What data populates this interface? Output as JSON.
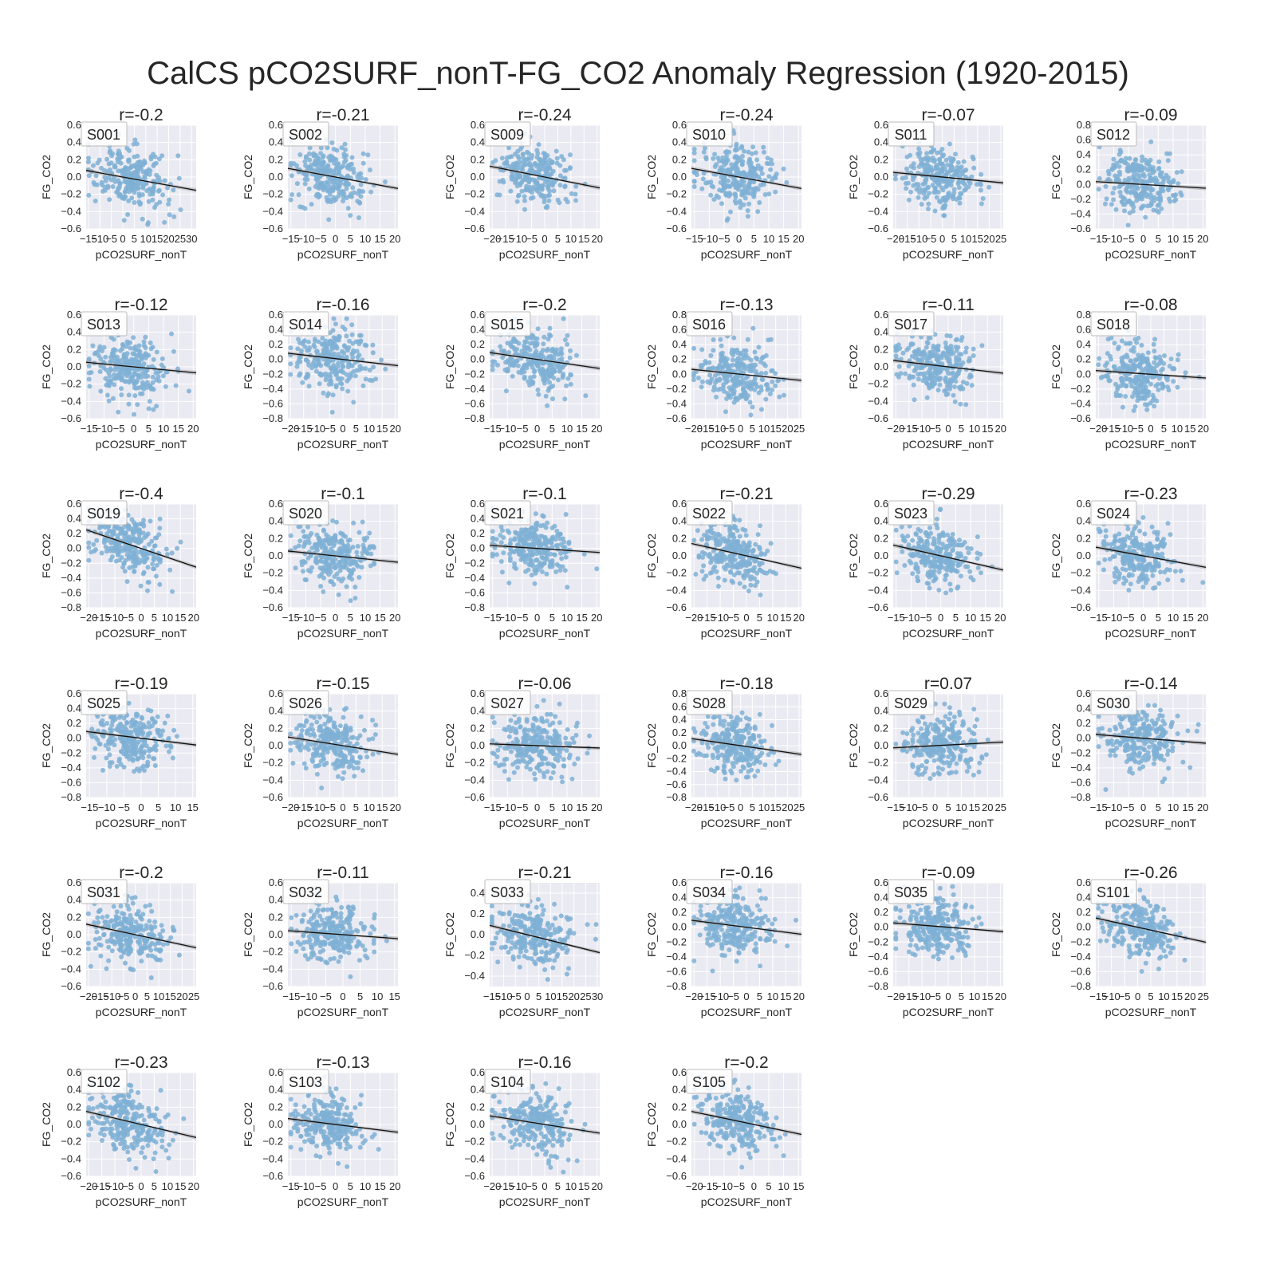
{
  "title": "CalCS pCO2SURF_nonT-FG_CO2 Anomaly Regression (1920-2015)",
  "colors": {
    "points": "#7fb0d5",
    "line": "#111111",
    "band": "#9a9a9a",
    "panel_bg": "#eaeaf2",
    "grid": "#ffffff"
  },
  "chart_data": [
    {
      "type": "scatter",
      "id": "S001",
      "r_label": "r=-0.2",
      "xlabel": "pCO2SURF_nonT",
      "ylabel": "FG_CO2",
      "xlim": [
        -16,
        32
      ],
      "ylim": [
        -0.6,
        0.6
      ],
      "xticks": [
        -15,
        -10,
        -5,
        0,
        5,
        10,
        15,
        20,
        25,
        30
      ],
      "yticks": [
        -0.6,
        -0.4,
        -0.2,
        0.0,
        0.2,
        0.4,
        0.6
      ],
      "fit": {
        "slope": -0.0048,
        "intercept": 0.0
      }
    },
    {
      "type": "scatter",
      "id": "S002",
      "r_label": "r=-0.21",
      "xlabel": "pCO2SURF_nonT",
      "ylabel": "FG_CO2",
      "xlim": [
        -16,
        21
      ],
      "ylim": [
        -0.6,
        0.6
      ],
      "xticks": [
        -15,
        -10,
        -5,
        0,
        5,
        10,
        15,
        20
      ],
      "yticks": [
        -0.6,
        -0.4,
        -0.2,
        0.0,
        0.2,
        0.4,
        0.6
      ],
      "fit": {
        "slope": -0.0063,
        "intercept": 0.0
      }
    },
    {
      "type": "scatter",
      "id": "S009",
      "r_label": "r=-0.24",
      "xlabel": "pCO2SURF_nonT",
      "ylabel": "FG_CO2",
      "xlim": [
        -21,
        21
      ],
      "ylim": [
        -0.6,
        0.6
      ],
      "xticks": [
        -20,
        -15,
        -10,
        -5,
        0,
        5,
        10,
        15,
        20
      ],
      "yticks": [
        -0.6,
        -0.4,
        -0.2,
        0.0,
        0.2,
        0.4,
        0.6
      ],
      "fit": {
        "slope": -0.006,
        "intercept": 0.0
      }
    },
    {
      "type": "scatter",
      "id": "S010",
      "r_label": "r=-0.24",
      "xlabel": "pCO2SURF_nonT",
      "ylabel": "FG_CO2",
      "xlim": [
        -16,
        21
      ],
      "ylim": [
        -0.6,
        0.6
      ],
      "xticks": [
        -15,
        -10,
        -5,
        0,
        5,
        10,
        15,
        20
      ],
      "yticks": [
        -0.6,
        -0.4,
        -0.2,
        0.0,
        0.2,
        0.4,
        0.6
      ],
      "fit": {
        "slope": -0.0063,
        "intercept": 0.0
      }
    },
    {
      "type": "scatter",
      "id": "S011",
      "r_label": "r=-0.07",
      "xlabel": "pCO2SURF_nonT",
      "ylabel": "FG_CO2",
      "xlim": [
        -21,
        26
      ],
      "ylim": [
        -0.6,
        0.6
      ],
      "xticks": [
        -20,
        -15,
        -10,
        -5,
        0,
        5,
        10,
        15,
        20,
        25
      ],
      "yticks": [
        -0.6,
        -0.4,
        -0.2,
        0.0,
        0.2,
        0.4,
        0.6
      ],
      "fit": {
        "slope": -0.0026,
        "intercept": 0.0
      }
    },
    {
      "type": "scatter",
      "id": "S012",
      "r_label": "r=-0.09",
      "xlabel": "pCO2SURF_nonT",
      "ylabel": "FG_CO2",
      "xlim": [
        -16,
        21
      ],
      "ylim": [
        -0.6,
        0.8
      ],
      "xticks": [
        -15,
        -10,
        -5,
        0,
        5,
        10,
        15,
        20
      ],
      "yticks": [
        -0.6,
        -0.4,
        -0.2,
        0.0,
        0.2,
        0.4,
        0.6,
        0.8
      ],
      "fit": {
        "slope": -0.0024,
        "intercept": 0.0
      }
    },
    {
      "type": "scatter",
      "id": "S013",
      "r_label": "r=-0.12",
      "xlabel": "pCO2SURF_nonT",
      "ylabel": "FG_CO2",
      "xlim": [
        -16,
        21
      ],
      "ylim": [
        -0.6,
        0.6
      ],
      "xticks": [
        -15,
        -10,
        -5,
        0,
        5,
        10,
        15,
        20
      ],
      "yticks": [
        -0.6,
        -0.4,
        -0.2,
        0.0,
        0.2,
        0.4,
        0.6
      ],
      "fit": {
        "slope": -0.0033,
        "intercept": 0.0
      }
    },
    {
      "type": "scatter",
      "id": "S014",
      "r_label": "r=-0.16",
      "xlabel": "pCO2SURF_nonT",
      "ylabel": "FG_CO2",
      "xlim": [
        -21,
        21
      ],
      "ylim": [
        -0.8,
        0.6
      ],
      "xticks": [
        -20,
        -15,
        -10,
        -5,
        0,
        5,
        10,
        15,
        20
      ],
      "yticks": [
        -0.8,
        -0.6,
        -0.4,
        -0.2,
        0.0,
        0.2,
        0.4,
        0.6
      ],
      "fit": {
        "slope": -0.004,
        "intercept": 0.0
      }
    },
    {
      "type": "scatter",
      "id": "S015",
      "r_label": "r=-0.2",
      "xlabel": "pCO2SURF_nonT",
      "ylabel": "FG_CO2",
      "xlim": [
        -16,
        21
      ],
      "ylim": [
        -0.8,
        0.6
      ],
      "xticks": [
        -15,
        -10,
        -5,
        0,
        5,
        10,
        15,
        20
      ],
      "yticks": [
        -0.8,
        -0.6,
        -0.4,
        -0.2,
        0.0,
        0.2,
        0.4,
        0.6
      ],
      "fit": {
        "slope": -0.0058,
        "intercept": 0.0
      }
    },
    {
      "type": "scatter",
      "id": "S016",
      "r_label": "r=-0.13",
      "xlabel": "pCO2SURF_nonT",
      "ylabel": "FG_CO2",
      "xlim": [
        -21,
        26
      ],
      "ylim": [
        -0.6,
        0.8
      ],
      "xticks": [
        -20,
        -15,
        -10,
        -5,
        0,
        5,
        10,
        15,
        20,
        25
      ],
      "yticks": [
        -0.6,
        -0.4,
        -0.2,
        0.0,
        0.2,
        0.4,
        0.6,
        0.8
      ],
      "fit": {
        "slope": -0.0032,
        "intercept": 0.0
      }
    },
    {
      "type": "scatter",
      "id": "S017",
      "r_label": "r=-0.11",
      "xlabel": "pCO2SURF_nonT",
      "ylabel": "FG_CO2",
      "xlim": [
        -21,
        21
      ],
      "ylim": [
        -0.6,
        0.6
      ],
      "xticks": [
        -20,
        -15,
        -10,
        -5,
        0,
        5,
        10,
        15,
        20
      ],
      "yticks": [
        -0.6,
        -0.4,
        -0.2,
        0.0,
        0.2,
        0.4,
        0.6
      ],
      "fit": {
        "slope": -0.0035,
        "intercept": 0.0
      }
    },
    {
      "type": "scatter",
      "id": "S018",
      "r_label": "r=-0.08",
      "xlabel": "pCO2SURF_nonT",
      "ylabel": "FG_CO2",
      "xlim": [
        -21,
        21
      ],
      "ylim": [
        -0.6,
        0.8
      ],
      "xticks": [
        -20,
        -15,
        -10,
        -5,
        0,
        5,
        10,
        15,
        20
      ],
      "yticks": [
        -0.6,
        -0.4,
        -0.2,
        0.0,
        0.2,
        0.4,
        0.6,
        0.8
      ],
      "fit": {
        "slope": -0.0024,
        "intercept": 0.0
      }
    },
    {
      "type": "scatter",
      "id": "S019",
      "r_label": "r=-0.4",
      "xlabel": "pCO2SURF_nonT",
      "ylabel": "FG_CO2",
      "xlim": [
        -21,
        21
      ],
      "ylim": [
        -0.8,
        0.6
      ],
      "xticks": [
        -20,
        -15,
        -10,
        -5,
        0,
        5,
        10,
        15,
        20
      ],
      "yticks": [
        -0.8,
        -0.6,
        -0.4,
        -0.2,
        0.0,
        0.2,
        0.4,
        0.6
      ],
      "fit": {
        "slope": -0.012,
        "intercept": 0.0
      }
    },
    {
      "type": "scatter",
      "id": "S020",
      "r_label": "r=-0.1",
      "xlabel": "pCO2SURF_nonT",
      "ylabel": "FG_CO2",
      "xlim": [
        -16,
        21
      ],
      "ylim": [
        -0.6,
        0.6
      ],
      "xticks": [
        -15,
        -10,
        -5,
        0,
        5,
        10,
        15,
        20
      ],
      "yticks": [
        -0.6,
        -0.4,
        -0.2,
        0.0,
        0.2,
        0.4,
        0.6
      ],
      "fit": {
        "slope": -0.0035,
        "intercept": 0.0
      }
    },
    {
      "type": "scatter",
      "id": "S021",
      "r_label": "r=-0.1",
      "xlabel": "pCO2SURF_nonT",
      "ylabel": "FG_CO2",
      "xlim": [
        -16,
        21
      ],
      "ylim": [
        -0.8,
        0.6
      ],
      "xticks": [
        -15,
        -10,
        -5,
        0,
        5,
        10,
        15,
        20
      ],
      "yticks": [
        -0.8,
        -0.6,
        -0.4,
        -0.2,
        0.0,
        0.2,
        0.4,
        0.6
      ],
      "fit": {
        "slope": -0.0026,
        "intercept": 0.0
      }
    },
    {
      "type": "scatter",
      "id": "S022",
      "r_label": "r=-0.21",
      "xlabel": "pCO2SURF_nonT",
      "ylabel": "FG_CO2",
      "xlim": [
        -21,
        21
      ],
      "ylim": [
        -0.6,
        0.6
      ],
      "xticks": [
        -20,
        -15,
        -10,
        -5,
        0,
        5,
        10,
        15,
        20
      ],
      "yticks": [
        -0.6,
        -0.4,
        -0.2,
        0.0,
        0.2,
        0.4,
        0.6
      ],
      "fit": {
        "slope": -0.0068,
        "intercept": 0.0
      }
    },
    {
      "type": "scatter",
      "id": "S023",
      "r_label": "r=-0.29",
      "xlabel": "pCO2SURF_nonT",
      "ylabel": "FG_CO2",
      "xlim": [
        -16,
        21
      ],
      "ylim": [
        -0.6,
        0.6
      ],
      "xticks": [
        -15,
        -10,
        -5,
        0,
        5,
        10,
        15,
        20
      ],
      "yticks": [
        -0.6,
        -0.4,
        -0.2,
        0.0,
        0.2,
        0.4,
        0.6
      ],
      "fit": {
        "slope": -0.0078,
        "intercept": 0.0
      }
    },
    {
      "type": "scatter",
      "id": "S024",
      "r_label": "r=-0.23",
      "xlabel": "pCO2SURF_nonT",
      "ylabel": "FG_CO2",
      "xlim": [
        -16,
        21
      ],
      "ylim": [
        -0.6,
        0.6
      ],
      "xticks": [
        -15,
        -10,
        -5,
        0,
        5,
        10,
        15,
        20
      ],
      "yticks": [
        -0.6,
        -0.4,
        -0.2,
        0.0,
        0.2,
        0.4,
        0.6
      ],
      "fit": {
        "slope": -0.0063,
        "intercept": 0.0
      }
    },
    {
      "type": "scatter",
      "id": "S025",
      "r_label": "r=-0.19",
      "xlabel": "pCO2SURF_nonT",
      "ylabel": "FG_CO2",
      "xlim": [
        -16,
        16
      ],
      "ylim": [
        -0.8,
        0.6
      ],
      "xticks": [
        -15,
        -10,
        -5,
        0,
        5,
        10,
        15
      ],
      "yticks": [
        -0.8,
        -0.6,
        -0.4,
        -0.2,
        0.0,
        0.2,
        0.4,
        0.6
      ],
      "fit": {
        "slope": -0.0057,
        "intercept": 0.0
      }
    },
    {
      "type": "scatter",
      "id": "S026",
      "r_label": "r=-0.15",
      "xlabel": "pCO2SURF_nonT",
      "ylabel": "FG_CO2",
      "xlim": [
        -21,
        21
      ],
      "ylim": [
        -0.6,
        0.6
      ],
      "xticks": [
        -20,
        -15,
        -10,
        -5,
        0,
        5,
        10,
        15,
        20
      ],
      "yticks": [
        -0.6,
        -0.4,
        -0.2,
        0.0,
        0.2,
        0.4,
        0.6
      ],
      "fit": {
        "slope": -0.0048,
        "intercept": 0.0
      }
    },
    {
      "type": "scatter",
      "id": "S027",
      "r_label": "r=-0.06",
      "xlabel": "pCO2SURF_nonT",
      "ylabel": "FG_CO2",
      "xlim": [
        -16,
        21
      ],
      "ylim": [
        -0.6,
        0.6
      ],
      "xticks": [
        -15,
        -10,
        -5,
        0,
        5,
        10,
        15,
        20
      ],
      "yticks": [
        -0.6,
        -0.4,
        -0.2,
        0.0,
        0.2,
        0.4,
        0.6
      ],
      "fit": {
        "slope": -0.0013,
        "intercept": 0.0
      }
    },
    {
      "type": "scatter",
      "id": "S028",
      "r_label": "r=-0.18",
      "xlabel": "pCO2SURF_nonT",
      "ylabel": "FG_CO2",
      "xlim": [
        -21,
        26
      ],
      "ylim": [
        -0.8,
        0.8
      ],
      "xticks": [
        -20,
        -15,
        -10,
        -5,
        0,
        5,
        10,
        15,
        20,
        25
      ],
      "yticks": [
        -0.8,
        -0.6,
        -0.4,
        -0.2,
        0.0,
        0.2,
        0.4,
        0.6,
        0.8
      ],
      "fit": {
        "slope": -0.0052,
        "intercept": 0.0
      }
    },
    {
      "type": "scatter",
      "id": "S029",
      "r_label": "r=0.07",
      "xlabel": "pCO2SURF_nonT",
      "ylabel": "FG_CO2",
      "xlim": [
        -16,
        26
      ],
      "ylim": [
        -0.6,
        0.6
      ],
      "xticks": [
        -15,
        -10,
        -5,
        0,
        5,
        10,
        15,
        20,
        25
      ],
      "yticks": [
        -0.6,
        -0.4,
        -0.2,
        0.0,
        0.2,
        0.4,
        0.6
      ],
      "fit": {
        "slope": 0.0016,
        "intercept": 0.0
      }
    },
    {
      "type": "scatter",
      "id": "S030",
      "r_label": "r=-0.14",
      "xlabel": "pCO2SURF_nonT",
      "ylabel": "FG_CO2",
      "xlim": [
        -16,
        21
      ],
      "ylim": [
        -0.8,
        0.6
      ],
      "xticks": [
        -15,
        -10,
        -5,
        0,
        5,
        10,
        15,
        20
      ],
      "yticks": [
        -0.8,
        -0.6,
        -0.4,
        -0.2,
        0.0,
        0.2,
        0.4,
        0.6
      ],
      "fit": {
        "slope": -0.0032,
        "intercept": 0.0
      }
    },
    {
      "type": "scatter",
      "id": "S031",
      "r_label": "r=-0.2",
      "xlabel": "pCO2SURF_nonT",
      "ylabel": "FG_CO2",
      "xlim": [
        -21,
        26
      ],
      "ylim": [
        -0.6,
        0.6
      ],
      "xticks": [
        -20,
        -15,
        -10,
        -5,
        0,
        5,
        10,
        15,
        20,
        25
      ],
      "yticks": [
        -0.6,
        -0.4,
        -0.2,
        0.0,
        0.2,
        0.4,
        0.6
      ],
      "fit": {
        "slope": -0.0058,
        "intercept": 0.0
      }
    },
    {
      "type": "scatter",
      "id": "S032",
      "r_label": "r=-0.11",
      "xlabel": "pCO2SURF_nonT",
      "ylabel": "FG_CO2",
      "xlim": [
        -16,
        16
      ],
      "ylim": [
        -0.6,
        0.6
      ],
      "xticks": [
        -15,
        -10,
        -5,
        0,
        5,
        10,
        15
      ],
      "yticks": [
        -0.6,
        -0.4,
        -0.2,
        0.0,
        0.2,
        0.4,
        0.6
      ],
      "fit": {
        "slope": -0.0029,
        "intercept": 0.0
      }
    },
    {
      "type": "scatter",
      "id": "S033",
      "r_label": "r=-0.21",
      "xlabel": "pCO2SURF_nonT",
      "ylabel": "FG_CO2",
      "xlim": [
        -16,
        31
      ],
      "ylim": [
        -0.5,
        0.5
      ],
      "xticks": [
        -15,
        -10,
        -5,
        0,
        5,
        10,
        15,
        20,
        25,
        30
      ],
      "yticks": [
        -0.4,
        -0.2,
        0.0,
        0.2,
        0.4
      ],
      "fit": {
        "slope": -0.0056,
        "intercept": 0.0
      }
    },
    {
      "type": "scatter",
      "id": "S034",
      "r_label": "r=-0.16",
      "xlabel": "pCO2SURF_nonT",
      "ylabel": "FG_CO2",
      "xlim": [
        -21,
        21
      ],
      "ylim": [
        -0.8,
        0.6
      ],
      "xticks": [
        -20,
        -15,
        -10,
        -5,
        0,
        5,
        10,
        15,
        20
      ],
      "yticks": [
        -0.8,
        -0.6,
        -0.4,
        -0.2,
        0.0,
        0.2,
        0.4,
        0.6
      ],
      "fit": {
        "slope": -0.0045,
        "intercept": 0.0
      }
    },
    {
      "type": "scatter",
      "id": "S035",
      "r_label": "r=-0.09",
      "xlabel": "pCO2SURF_nonT",
      "ylabel": "FG_CO2",
      "xlim": [
        -21,
        21
      ],
      "ylim": [
        -0.8,
        0.6
      ],
      "xticks": [
        -20,
        -15,
        -10,
        -5,
        0,
        5,
        10,
        15,
        20
      ],
      "yticks": [
        -0.8,
        -0.6,
        -0.4,
        -0.2,
        0.0,
        0.2,
        0.4,
        0.6
      ],
      "fit": {
        "slope": -0.0028,
        "intercept": 0.0
      }
    },
    {
      "type": "scatter",
      "id": "S101",
      "r_label": "r=-0.26",
      "xlabel": "pCO2SURF_nonT",
      "ylabel": "FG_CO2",
      "xlim": [
        -16,
        26
      ],
      "ylim": [
        -0.8,
        0.6
      ],
      "xticks": [
        -15,
        -10,
        -5,
        0,
        5,
        10,
        15,
        20,
        25
      ],
      "yticks": [
        -0.8,
        -0.6,
        -0.4,
        -0.2,
        0.0,
        0.2,
        0.4,
        0.6
      ],
      "fit": {
        "slope": -0.0078,
        "intercept": 0.0
      }
    },
    {
      "type": "scatter",
      "id": "S102",
      "r_label": "r=-0.23",
      "xlabel": "pCO2SURF_nonT",
      "ylabel": "FG_CO2",
      "xlim": [
        -21,
        21
      ],
      "ylim": [
        -0.6,
        0.6
      ],
      "xticks": [
        -20,
        -15,
        -10,
        -5,
        0,
        5,
        10,
        15,
        20
      ],
      "yticks": [
        -0.6,
        -0.4,
        -0.2,
        0.0,
        0.2,
        0.4,
        0.6
      ],
      "fit": {
        "slope": -0.0072,
        "intercept": 0.0
      }
    },
    {
      "type": "scatter",
      "id": "S103",
      "r_label": "r=-0.13",
      "xlabel": "pCO2SURF_nonT",
      "ylabel": "FG_CO2",
      "xlim": [
        -16,
        21
      ],
      "ylim": [
        -0.6,
        0.6
      ],
      "xticks": [
        -15,
        -10,
        -5,
        0,
        5,
        10,
        15,
        20
      ],
      "yticks": [
        -0.6,
        -0.4,
        -0.2,
        0.0,
        0.2,
        0.4,
        0.6
      ],
      "fit": {
        "slope": -0.0043,
        "intercept": 0.0
      }
    },
    {
      "type": "scatter",
      "id": "S104",
      "r_label": "r=-0.16",
      "xlabel": "pCO2SURF_nonT",
      "ylabel": "FG_CO2",
      "xlim": [
        -21,
        21
      ],
      "ylim": [
        -0.6,
        0.6
      ],
      "xticks": [
        -20,
        -15,
        -10,
        -5,
        0,
        5,
        10,
        15,
        20
      ],
      "yticks": [
        -0.6,
        -0.4,
        -0.2,
        0.0,
        0.2,
        0.4,
        0.6
      ],
      "fit": {
        "slope": -0.0048,
        "intercept": 0.0
      }
    },
    {
      "type": "scatter",
      "id": "S105",
      "r_label": "r=-0.2",
      "xlabel": "pCO2SURF_nonT",
      "ylabel": "FG_CO2",
      "xlim": [
        -21,
        16
      ],
      "ylim": [
        -0.6,
        0.6
      ],
      "xticks": [
        -20,
        -15,
        -10,
        -5,
        0,
        5,
        10,
        15
      ],
      "yticks": [
        -0.6,
        -0.4,
        -0.2,
        0.0,
        0.2,
        0.4,
        0.6
      ],
      "fit": {
        "slope": -0.0072,
        "intercept": 0.0
      }
    }
  ]
}
